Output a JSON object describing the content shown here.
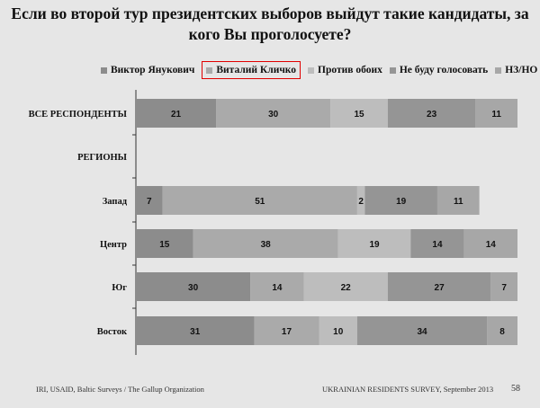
{
  "title": "Если во второй тур президентских выборов выйдут такие кандидаты, за кого Вы проголосуете?",
  "highlighted_legend": "Виталий Кличко",
  "chart_data": {
    "type": "bar",
    "orientation": "horizontal",
    "stacked": true,
    "title": "Если во второй тур президентских выборов выйдут такие кандидаты, за кого Вы проголосуете?",
    "categories": [
      "ВСЕ РЕСПОНДЕНТЫ",
      "РЕГИОНЫ",
      "Запад",
      "Центр",
      "Юг",
      "Восток"
    ],
    "series": [
      {
        "name": "Виктор Янукович",
        "color": "#8c8c8c",
        "values": [
          21,
          null,
          7,
          15,
          30,
          31
        ]
      },
      {
        "name": "Виталий Кличко",
        "color": "#aaaaaa",
        "values": [
          30,
          null,
          51,
          38,
          14,
          17
        ]
      },
      {
        "name": "Против обоих",
        "color": "#bdbdbd",
        "values": [
          15,
          null,
          2,
          19,
          22,
          10
        ]
      },
      {
        "name": "Не буду голосовать",
        "color": "#959595",
        "values": [
          23,
          null,
          19,
          14,
          27,
          34
        ]
      },
      {
        "name": "НЗ/НО",
        "color": "#a7a7a7",
        "values": [
          11,
          null,
          11,
          14,
          7,
          8
        ]
      }
    ],
    "xlim": [
      0,
      100
    ],
    "legend": "top",
    "grid": false
  },
  "footer": {
    "left": "IRI, USAID,  Baltic Surveys / The Gallup Organization",
    "right": "UKRAINIAN RESIDENTS SURVEY, September 2013",
    "page": "58"
  }
}
